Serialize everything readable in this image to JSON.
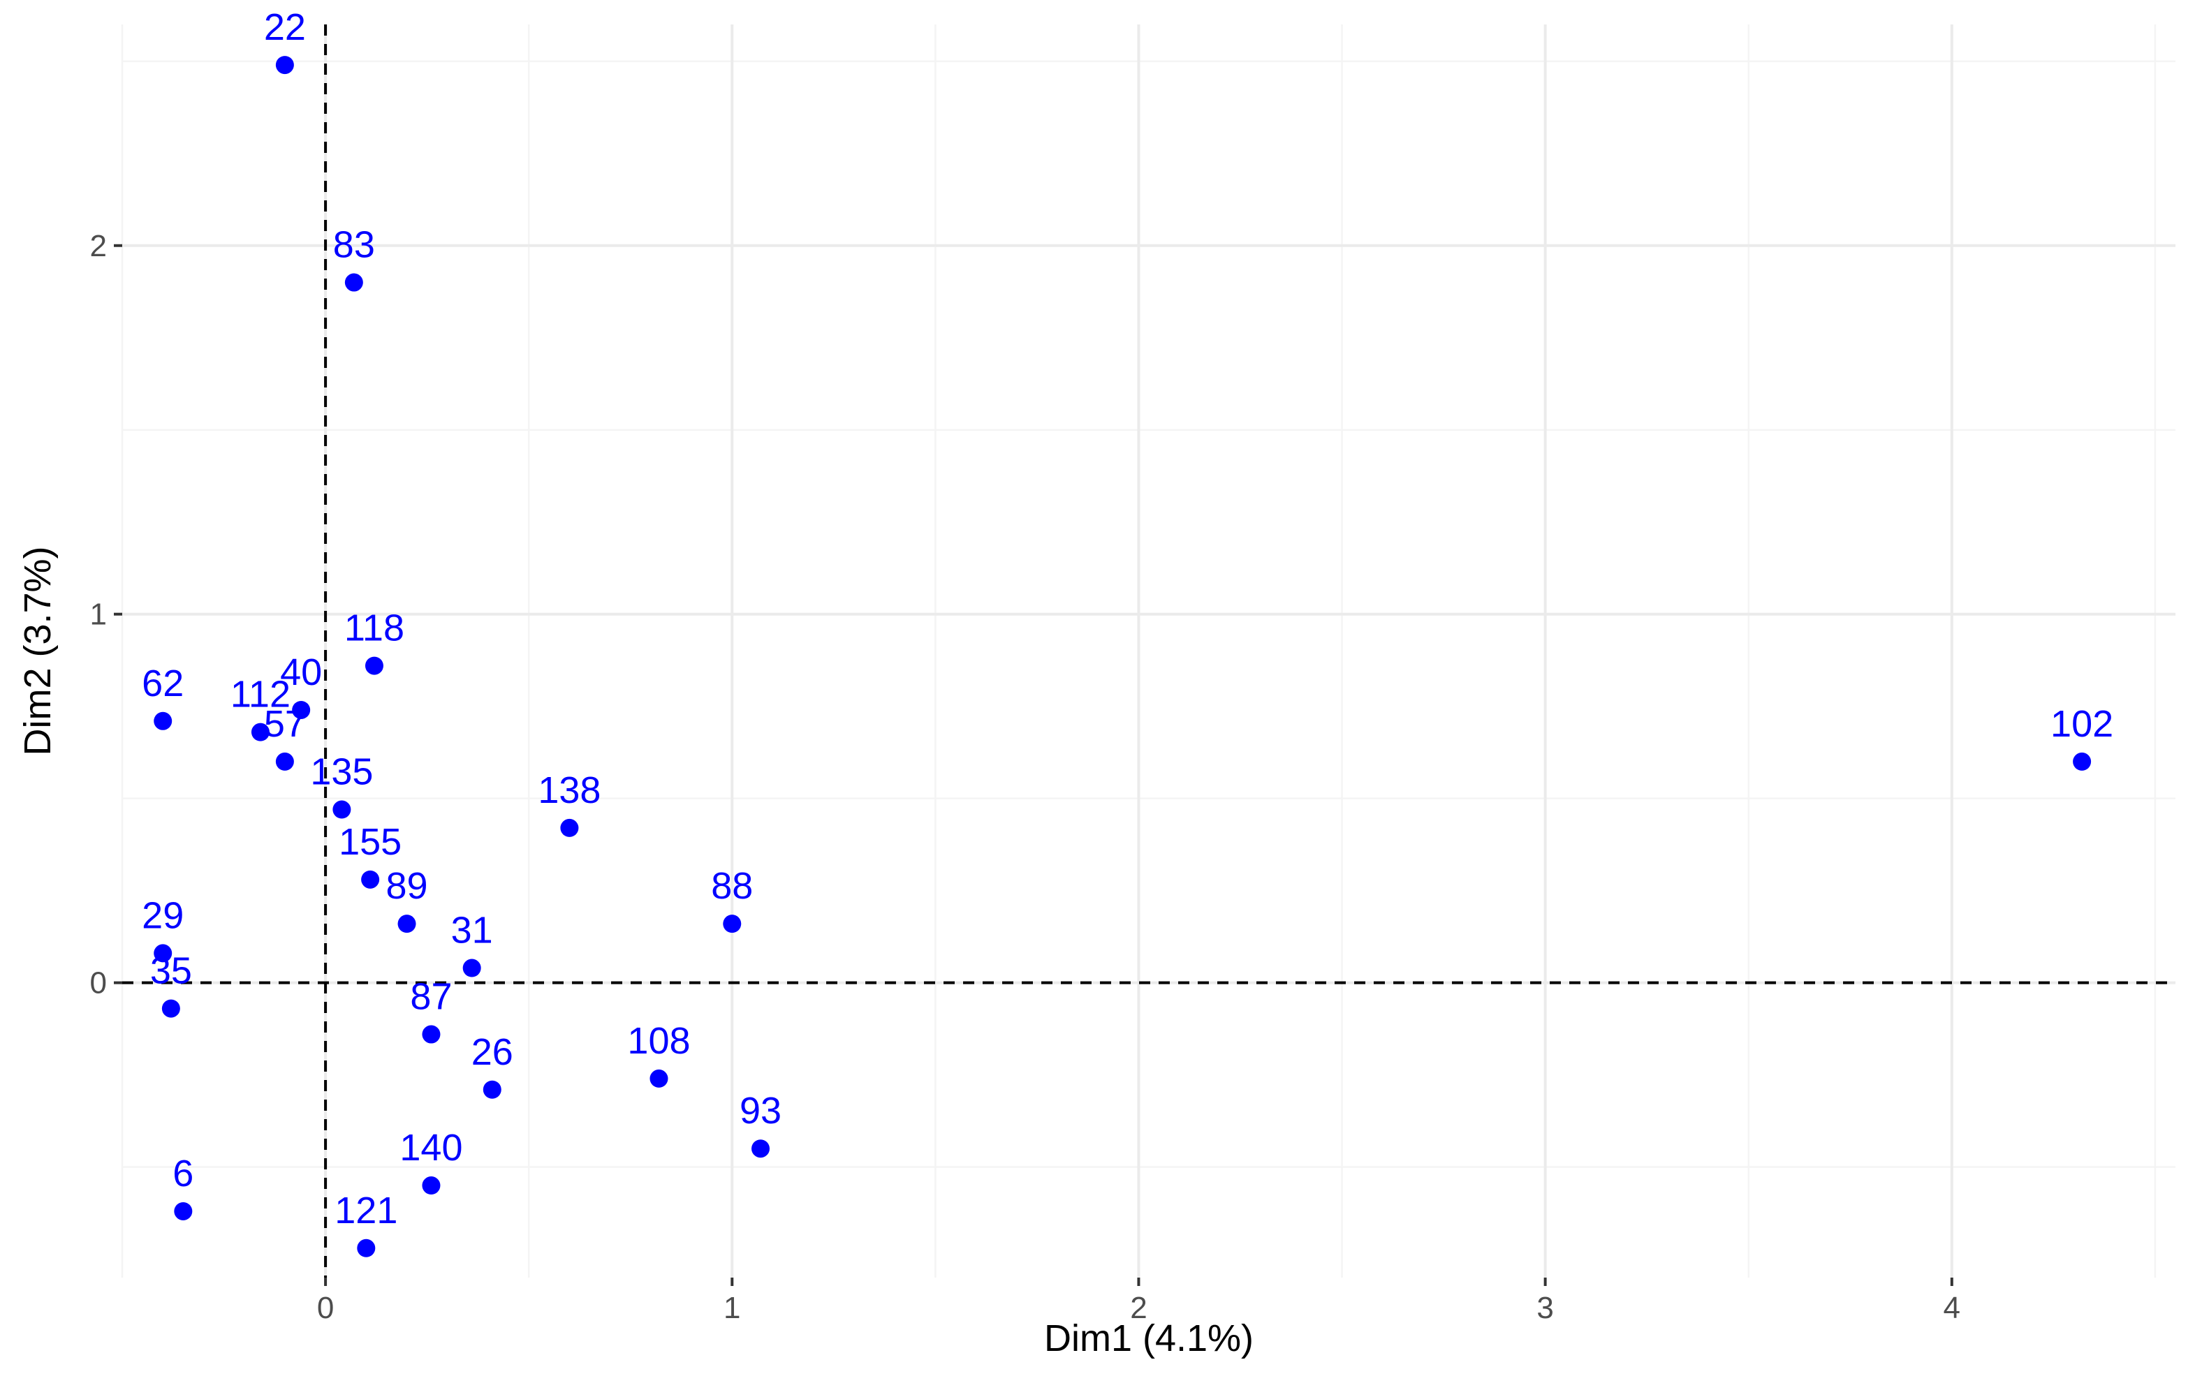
{
  "chart_data": {
    "type": "scatter",
    "title": "",
    "xlabel": "Dim1 (4.1%)",
    "ylabel": "Dim2 (3.7%)",
    "xlim": [
      -0.5,
      4.55
    ],
    "ylim": [
      -0.8,
      2.6
    ],
    "x_ticks": [
      0,
      1,
      2,
      3,
      4
    ],
    "y_ticks": [
      0,
      1,
      2
    ],
    "x_tick_labels": [
      "0",
      "1",
      "2",
      "3",
      "4"
    ],
    "y_tick_labels": [
      "0",
      "1",
      "2"
    ],
    "grid": true,
    "reference_lines": {
      "x": 0,
      "y": 0,
      "style": "dashed"
    },
    "point_color": "#0000ff",
    "labeled_points": [
      {
        "label": "22",
        "x": -0.1,
        "y": 2.49
      },
      {
        "label": "83",
        "x": 0.07,
        "y": 1.9
      },
      {
        "label": "118",
        "x": 0.12,
        "y": 0.86
      },
      {
        "label": "40",
        "x": -0.06,
        "y": 0.74
      },
      {
        "label": "62",
        "x": -0.4,
        "y": 0.71
      },
      {
        "label": "112",
        "x": -0.16,
        "y": 0.68
      },
      {
        "label": "57",
        "x": -0.1,
        "y": 0.6
      },
      {
        "label": "102",
        "x": 4.32,
        "y": 0.6
      },
      {
        "label": "135",
        "x": 0.04,
        "y": 0.47
      },
      {
        "label": "138",
        "x": 0.6,
        "y": 0.42
      },
      {
        "label": "155",
        "x": 0.11,
        "y": 0.28
      },
      {
        "label": "88",
        "x": 1.0,
        "y": 0.16
      },
      {
        "label": "89",
        "x": 0.2,
        "y": 0.16
      },
      {
        "label": "31",
        "x": 0.36,
        "y": 0.04
      },
      {
        "label": "29",
        "x": -0.4,
        "y": 0.08
      },
      {
        "label": "35",
        "x": -0.38,
        "y": -0.07
      },
      {
        "label": "87",
        "x": 0.26,
        "y": -0.14
      },
      {
        "label": "26",
        "x": 0.41,
        "y": -0.29
      },
      {
        "label": "108",
        "x": 0.82,
        "y": -0.26
      },
      {
        "label": "93",
        "x": 1.07,
        "y": -0.45
      },
      {
        "label": "140",
        "x": 0.26,
        "y": -0.55
      },
      {
        "label": "6",
        "x": -0.35,
        "y": -0.62
      },
      {
        "label": "121",
        "x": 0.1,
        "y": -0.72
      }
    ]
  }
}
